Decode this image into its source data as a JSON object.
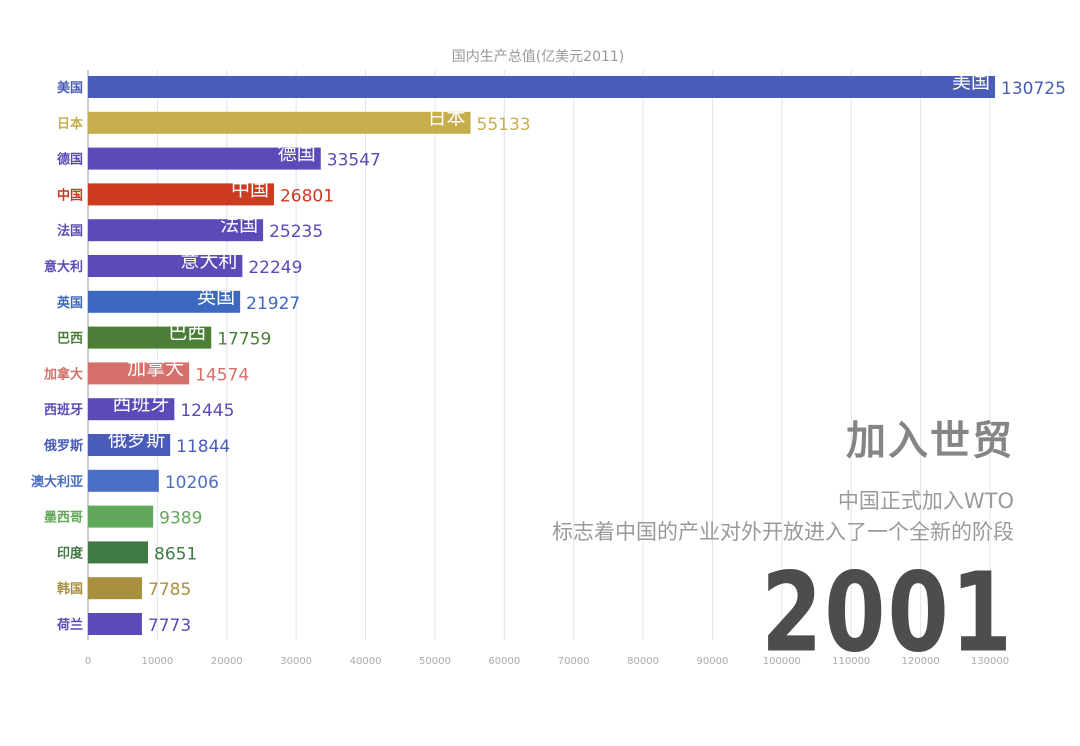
{
  "chart_data": {
    "type": "bar",
    "orientation": "horizontal",
    "title": "国内生产总值(亿美元2011)",
    "categories": [
      "美国",
      "日本",
      "德国",
      "中国",
      "法国",
      "意大利",
      "英国",
      "巴西",
      "加拿大",
      "西班牙",
      "俄罗斯",
      "澳大利亚",
      "墨西哥",
      "印度",
      "韩国",
      "荷兰"
    ],
    "values": [
      130725,
      55133,
      33547,
      26801,
      25235,
      22249,
      21927,
      17759,
      14574,
      12445,
      11844,
      10206,
      9389,
      8651,
      7785,
      7773
    ],
    "value_labels": [
      "130725",
      "55133",
      "33547",
      "26801",
      "25235",
      "22249",
      "21927",
      "17759",
      "14574",
      "12445",
      "11844",
      "10206",
      "9389",
      "8651",
      "7785",
      "7773"
    ],
    "inbar_labels": [
      "美国",
      "日本",
      "德国",
      "中国",
      "法国",
      "意大利",
      "英国",
      "巴西",
      "加拿大",
      "西班牙",
      "俄罗斯",
      "",
      "",
      "",
      "",
      ""
    ],
    "colors": [
      "#4a5cba",
      "#c8ad4c",
      "#5b4bb9",
      "#cc3a22",
      "#5b4bb9",
      "#5b4bb9",
      "#3d68bf",
      "#4b7f38",
      "#d6706a",
      "#5b4bb9",
      "#4a5cba",
      "#4a6ec4",
      "#62a85a",
      "#3f7a45",
      "#a89040",
      "#5b4bb9"
    ],
    "xticks": [
      "0",
      "10000",
      "20000",
      "30000",
      "40000",
      "50000",
      "60000",
      "70000",
      "80000",
      "90000",
      "100000",
      "110000",
      "120000",
      "130000"
    ],
    "xlim": [
      0,
      130000
    ],
    "grid": true
  },
  "overlay": {
    "event_title": "加入世贸",
    "event_line1": "中国正式加入WTO",
    "event_line2": "标志着中国的产业对外开放进入了一个全新的阶段",
    "year": "2001"
  }
}
